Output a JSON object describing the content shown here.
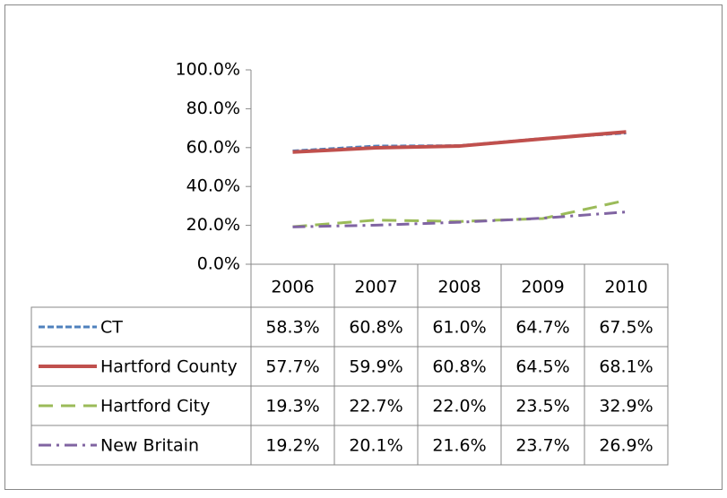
{
  "chart_data": {
    "type": "line",
    "categories": [
      "2006",
      "2007",
      "2008",
      "2009",
      "2010"
    ],
    "series": [
      {
        "name": "CT",
        "color": "#4f81bd",
        "values": [
          58.3,
          60.8,
          61.0,
          64.7,
          67.5
        ],
        "value_labels": [
          "58.3%",
          "60.8%",
          "61.0%",
          "64.7%",
          "67.5%"
        ]
      },
      {
        "name": "Hartford County",
        "color": "#c0504d",
        "values": [
          57.7,
          59.9,
          60.8,
          64.5,
          68.1
        ],
        "value_labels": [
          "57.7%",
          "59.9%",
          "60.8%",
          "64.5%",
          "68.1%"
        ]
      },
      {
        "name": "Hartford City",
        "color": "#9bbb59",
        "values": [
          19.3,
          22.7,
          22.0,
          23.5,
          32.9
        ],
        "value_labels": [
          "19.3%",
          "22.7%",
          "22.0%",
          "23.5%",
          "32.9%"
        ]
      },
      {
        "name": "New Britain",
        "color": "#8064a2",
        "values": [
          19.2,
          20.1,
          21.6,
          23.7,
          26.9
        ],
        "value_labels": [
          "19.2%",
          "20.1%",
          "21.6%",
          "23.7%",
          "26.9%"
        ]
      }
    ],
    "ylim": [
      0,
      100
    ],
    "yticks": [
      {
        "value": 0,
        "label": "0.0%"
      },
      {
        "value": 20,
        "label": "20.0%"
      },
      {
        "value": 40,
        "label": "40.0%"
      },
      {
        "value": 60,
        "label": "60.0%"
      },
      {
        "value": 80,
        "label": "80.0%"
      },
      {
        "value": 100,
        "label": "100.0%"
      }
    ],
    "grid": false
  }
}
